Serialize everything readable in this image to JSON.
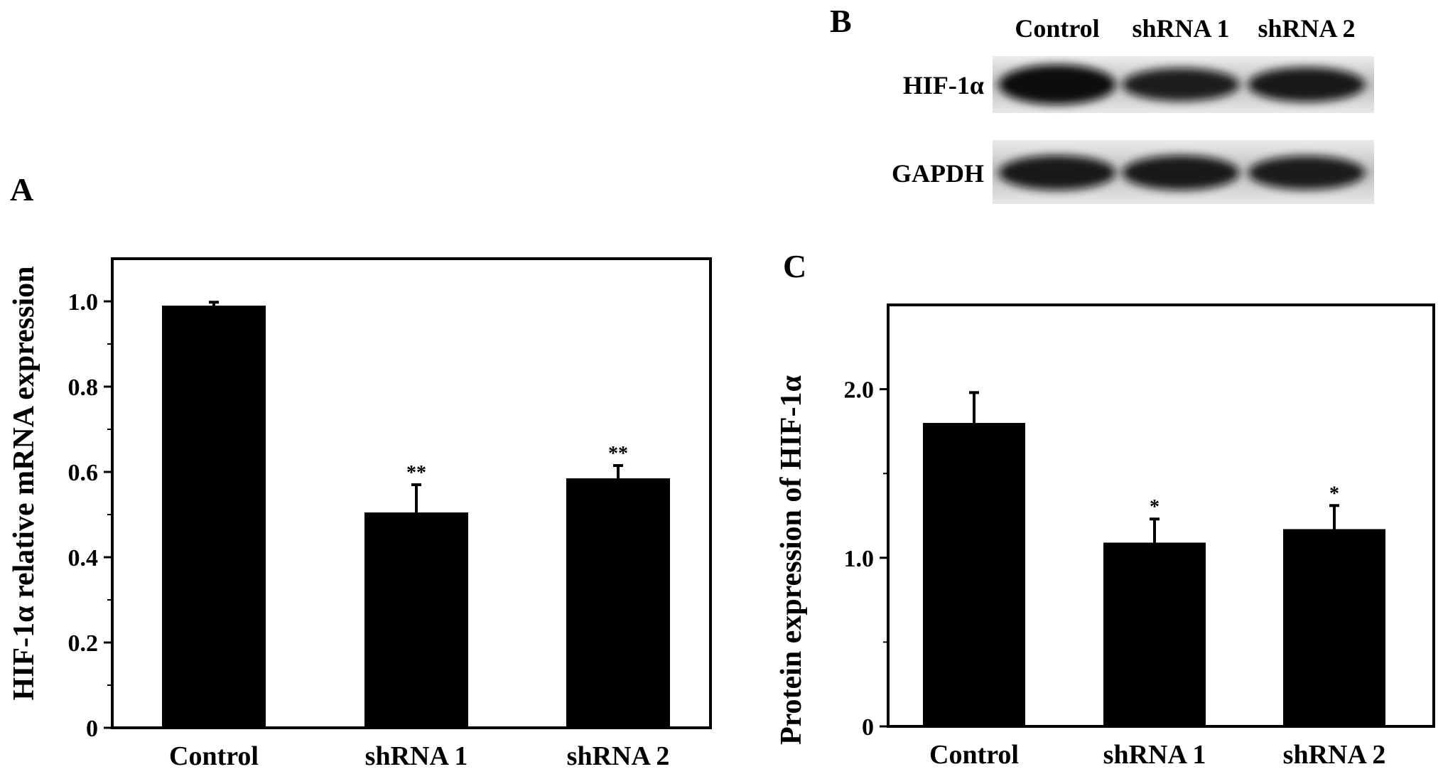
{
  "panels": {
    "a": "A",
    "b": "B",
    "c": "C"
  },
  "blot": {
    "lanes": [
      "Control",
      "shRNA 1",
      "shRNA 2"
    ],
    "rows": [
      {
        "label": "HIF-1α",
        "intensity": [
          1.0,
          0.8,
          0.85
        ]
      },
      {
        "label": "GAPDH",
        "intensity": [
          0.85,
          0.85,
          0.82
        ]
      }
    ]
  },
  "chart_data": [
    {
      "type": "bar",
      "panel": "A",
      "ylabel": "HIF-1α relative mRNA expression",
      "categories": [
        "Control",
        "shRNA 1",
        "shRNA 2"
      ],
      "values": [
        0.99,
        0.505,
        0.585
      ],
      "errors": [
        0.008,
        0.065,
        0.03
      ],
      "significance": [
        "",
        "**",
        "**"
      ],
      "ylim": [
        0,
        1.1
      ],
      "yticks": [
        0,
        0.2,
        0.4,
        0.6,
        0.8,
        1.0
      ],
      "yticklabels": [
        "0",
        "0.2",
        "0.4",
        "0.6",
        "0.8",
        "1.0"
      ],
      "color": "#000000"
    },
    {
      "type": "bar",
      "panel": "C",
      "ylabel": "Protein expression of HIF-1α",
      "categories": [
        "Control",
        "shRNA 1",
        "shRNA 2"
      ],
      "values": [
        1.8,
        1.09,
        1.17
      ],
      "errors": [
        0.18,
        0.14,
        0.14
      ],
      "significance": [
        "",
        "*",
        "*"
      ],
      "ylim": [
        0,
        2.5
      ],
      "yticks": [
        0,
        1.0,
        2.0
      ],
      "yticklabels": [
        "0",
        "1.0",
        "2.0"
      ],
      "color": "#000000"
    }
  ]
}
